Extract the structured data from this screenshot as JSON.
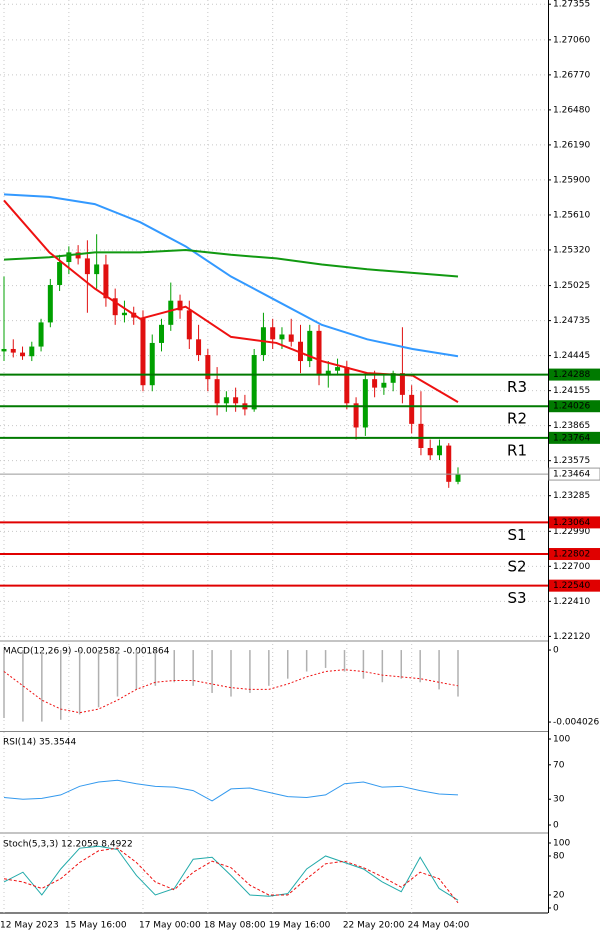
{
  "chart_data": [
    {
      "type": "candlestick",
      "categories": [
        "12 May 2023",
        null,
        null,
        null,
        null,
        null,
        null,
        "15 May 16:00",
        null,
        null,
        null,
        null,
        null,
        null,
        null,
        "17 May 00:00",
        null,
        null,
        null,
        null,
        null,
        null,
        "18 May 08:00",
        null,
        null,
        null,
        null,
        null,
        null,
        "19 May 16:00",
        null,
        null,
        null,
        null,
        null,
        null,
        null,
        "22 May 20:00",
        null,
        null,
        null,
        null,
        null,
        null,
        "24 May 04:00",
        null,
        null,
        null,
        null,
        null
      ],
      "open": [
        1.2448,
        1.245,
        1.2447,
        1.2444,
        1.2452,
        1.2472,
        1.2503,
        1.2522,
        1.253,
        1.2525,
        1.2512,
        1.252,
        1.2492,
        1.2478,
        1.248,
        1.2476,
        1.242,
        1.2455,
        1.247,
        1.249,
        1.2482,
        1.2458,
        1.2445,
        1.2425,
        1.2405,
        1.241,
        1.2405,
        1.24,
        1.2445,
        1.2468,
        1.2458,
        1.2462,
        1.2456,
        1.244,
        1.2465,
        1.2428,
        1.2432,
        1.2435,
        1.2405,
        1.2385,
        1.2425,
        1.2418,
        1.2422,
        1.243,
        1.2412,
        1.2388,
        1.2368,
        1.2362,
        1.237,
        1.234
      ],
      "high": [
        1.251,
        1.2458,
        1.2452,
        1.2456,
        1.2475,
        1.2508,
        1.2528,
        1.2535,
        1.2536,
        1.254,
        1.2545,
        1.2528,
        1.25,
        1.249,
        1.2485,
        1.2482,
        1.2462,
        1.2475,
        1.2505,
        1.2495,
        1.249,
        1.247,
        1.245,
        1.2435,
        1.2415,
        1.2418,
        1.2412,
        1.245,
        1.248,
        1.2475,
        1.2468,
        1.2475,
        1.247,
        1.247,
        1.247,
        1.244,
        1.2442,
        1.244,
        1.241,
        1.243,
        1.2432,
        1.2428,
        1.2432,
        1.2468,
        1.242,
        1.2415,
        1.2375,
        1.2375,
        1.2372,
        1.2352
      ],
      "low": [
        1.244,
        1.2443,
        1.2441,
        1.244,
        1.2448,
        1.2468,
        1.2498,
        1.2512,
        1.252,
        1.248,
        1.25,
        1.2485,
        1.247,
        1.2472,
        1.247,
        1.2415,
        1.2415,
        1.2448,
        1.2465,
        1.2475,
        1.245,
        1.244,
        1.2415,
        1.2395,
        1.2398,
        1.2398,
        1.2395,
        1.2398,
        1.244,
        1.245,
        1.245,
        1.2452,
        1.243,
        1.2435,
        1.242,
        1.2418,
        1.2428,
        1.24,
        1.2375,
        1.2378,
        1.241,
        1.2412,
        1.2415,
        1.2405,
        1.238,
        1.2362,
        1.2358,
        1.2358,
        1.2335,
        1.2338
      ],
      "close": [
        1.245,
        1.2447,
        1.2444,
        1.2452,
        1.2472,
        1.2503,
        1.2522,
        1.253,
        1.2525,
        1.2512,
        1.252,
        1.2492,
        1.2478,
        1.248,
        1.2476,
        1.242,
        1.2455,
        1.247,
        1.249,
        1.2482,
        1.2458,
        1.2445,
        1.2425,
        1.2405,
        1.241,
        1.2405,
        1.24,
        1.2445,
        1.2468,
        1.2458,
        1.2462,
        1.2456,
        1.244,
        1.2465,
        1.2428,
        1.2432,
        1.2435,
        1.2405,
        1.2385,
        1.2425,
        1.2418,
        1.2422,
        1.243,
        1.2412,
        1.2388,
        1.2368,
        1.2362,
        1.237,
        1.234,
        1.2346
      ],
      "up_color": "#00a000",
      "down_color": "#e01010",
      "lines": [
        {
          "color": "#3399ff",
          "values": [
            1.2578,
            1.2576,
            1.257,
            1.2555,
            1.2535,
            1.251,
            1.249,
            1.247,
            1.2458,
            1.245,
            1.2444
          ]
        },
        {
          "color": "#119911",
          "values": [
            1.2524,
            1.2526,
            1.253,
            1.253,
            1.2532,
            1.2528,
            1.2525,
            1.252,
            1.2516,
            1.2513,
            1.251
          ]
        },
        {
          "color": "#ee1111",
          "values": [
            1.2573,
            1.253,
            1.25,
            1.2475,
            1.2485,
            1.246,
            1.2455,
            1.244,
            1.243,
            1.2428,
            1.2406
          ]
        }
      ],
      "levels": [
        {
          "name": "R3",
          "value": 1.24288,
          "label": "1.24288",
          "color": "#007a00"
        },
        {
          "name": "R2",
          "value": 1.24026,
          "label": "1.24026",
          "color": "#007a00"
        },
        {
          "name": "R1",
          "value": 1.23764,
          "label": "1.23764",
          "color": "#007a00"
        },
        {
          "name": "S1",
          "value": 1.23064,
          "label": "1.23064",
          "color": "#e00000"
        },
        {
          "name": "S2",
          "value": 1.22802,
          "label": "1.22802",
          "color": "#e00000"
        },
        {
          "name": "S3",
          "value": 1.2254,
          "label": "1.22540",
          "color": "#e00000"
        }
      ],
      "last_price": 1.23464,
      "ylim": [
        1.2209,
        1.2739
      ],
      "yticks": [
        {
          "value": 1.27355,
          "label": "1.27355"
        },
        {
          "value": 1.2706,
          "label": "1.27060"
        },
        {
          "value": 1.2677,
          "label": "1.26770"
        },
        {
          "value": 1.2648,
          "label": "1.26480"
        },
        {
          "value": 1.2619,
          "label": "1.26190"
        },
        {
          "value": 1.259,
          "label": "1.25900"
        },
        {
          "value": 1.2561,
          "label": "1.25610"
        },
        {
          "value": 1.2532,
          "label": "1.25320"
        },
        {
          "value": 1.25025,
          "label": "1.25025"
        },
        {
          "value": 1.24735,
          "label": "1.24735"
        },
        {
          "value": 1.24445,
          "label": "1.24445"
        },
        {
          "value": 1.24155,
          "label": "1.24155"
        },
        {
          "value": 1.23865,
          "label": "1.23865"
        },
        {
          "value": 1.23575,
          "label": "1.23575"
        },
        {
          "value": 1.23285,
          "label": "1.23285"
        },
        {
          "value": 1.2299,
          "label": "1.22990"
        },
        {
          "value": 1.227,
          "label": "1.22700"
        },
        {
          "value": 1.2241,
          "label": "1.22410"
        },
        {
          "value": 1.2212,
          "label": "1.22120"
        }
      ],
      "grid": true
    },
    {
      "type": "macd",
      "title": "MACD(12,26,9) -0.002582 -0.001864",
      "histogram": [
        -0.0038,
        -0.004,
        -0.004,
        -0.0039,
        -0.0036,
        -0.0032,
        -0.0026,
        -0.0022,
        -0.002,
        -0.0018,
        -0.002,
        -0.0024,
        -0.0026,
        -0.0024,
        -0.002,
        -0.0016,
        -0.0012,
        -0.001,
        -0.0012,
        -0.0016,
        -0.0018,
        -0.0016,
        -0.0018,
        -0.0022,
        -0.0026
      ],
      "signal": [
        -0.0012,
        -0.002,
        -0.0028,
        -0.0033,
        -0.0035,
        -0.0033,
        -0.0028,
        -0.0022,
        -0.0018,
        -0.0017,
        -0.0017,
        -0.0019,
        -0.0021,
        -0.0022,
        -0.0022,
        -0.0019,
        -0.0015,
        -0.0012,
        -0.0011,
        -0.0012,
        -0.0014,
        -0.0015,
        -0.0016,
        -0.0018,
        -0.002
      ],
      "histogram_color": "#b0b0b0",
      "signal_color": "#ee1111",
      "dashed": true,
      "ylim": [
        -0.00447,
        0.00045
      ],
      "yticks": [
        0,
        -0.004026
      ]
    },
    {
      "type": "line",
      "title": "RSI(14) 35.3544",
      "lines": [
        {
          "color": "#3399ee",
          "values": [
            32,
            30,
            31,
            35,
            45,
            50,
            52,
            48,
            45,
            44,
            40,
            28,
            42,
            43,
            38,
            33,
            32,
            35,
            48,
            50,
            44,
            45,
            40,
            36,
            35
          ]
        }
      ],
      "ylim": [
        -5.8,
        107
      ],
      "yticks": [
        100,
        70,
        30,
        0
      ]
    },
    {
      "type": "line",
      "title": "Stoch(5,3,3) 12.2059 8.4922",
      "lines": [
        {
          "color": "#22aaaa",
          "values": [
            40,
            55,
            20,
            60,
            92,
            95,
            90,
            50,
            20,
            30,
            75,
            78,
            50,
            20,
            18,
            22,
            60,
            80,
            70,
            60,
            40,
            25,
            78,
            30,
            12
          ]
        },
        {
          "color": "#ee1111",
          "dashed": true,
          "values": [
            45,
            40,
            30,
            45,
            70,
            88,
            92,
            70,
            40,
            28,
            55,
            72,
            62,
            35,
            20,
            20,
            45,
            68,
            72,
            62,
            48,
            32,
            55,
            45,
            8
          ]
        }
      ],
      "ylim": [
        -6.2,
        112.3
      ],
      "yticks": [
        100,
        80,
        20,
        0
      ]
    }
  ]
}
